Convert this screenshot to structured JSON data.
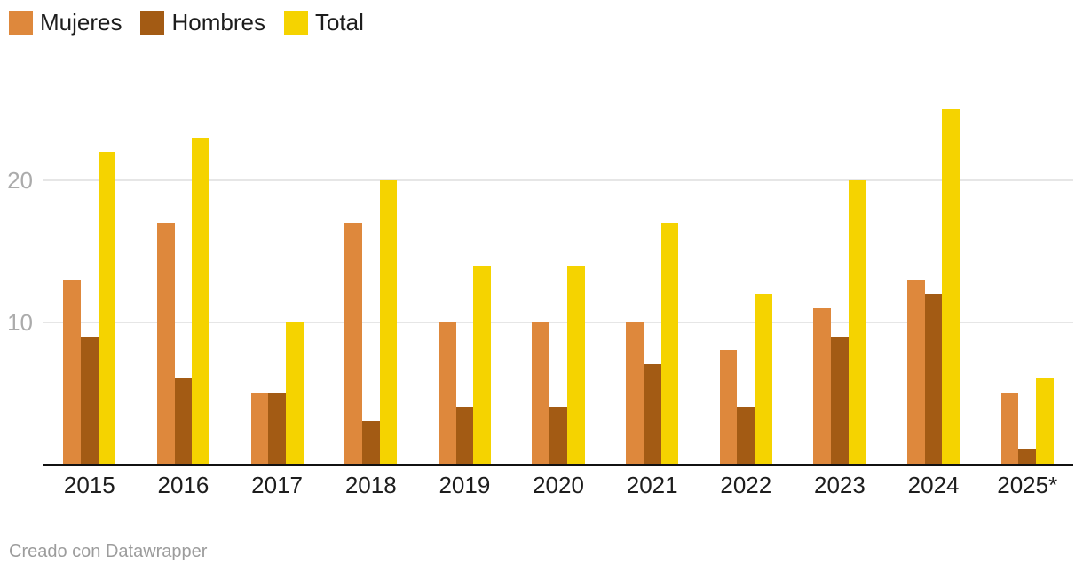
{
  "legend": {
    "items": [
      {
        "label": "Mujeres",
        "color": "#DE883C"
      },
      {
        "label": "Hombres",
        "color": "#A35B14"
      },
      {
        "label": "Total",
        "color": "#F5D300"
      }
    ]
  },
  "footer": {
    "text": "Creado con Datawrapper"
  },
  "colors": {
    "axis": "#111111",
    "gridline": "#E6E6E6",
    "tick_label": "#ABABAB",
    "x_label": "#1D1D1D"
  },
  "chart_data": {
    "type": "bar",
    "title": "",
    "xlabel": "",
    "ylabel": "",
    "categories": [
      "2015",
      "2016",
      "2017",
      "2018",
      "2019",
      "2020",
      "2021",
      "2022",
      "2023",
      "2024",
      "2025*"
    ],
    "series": [
      {
        "name": "Mujeres",
        "color": "#DE883C",
        "values": [
          13,
          17,
          5,
          17,
          10,
          10,
          10,
          8,
          11,
          13,
          5
        ]
      },
      {
        "name": "Hombres",
        "color": "#A35B14",
        "values": [
          9,
          6,
          5,
          3,
          4,
          4,
          7,
          4,
          9,
          12,
          1
        ]
      },
      {
        "name": "Total",
        "color": "#F5D300",
        "values": [
          22,
          23,
          10,
          20,
          14,
          14,
          17,
          12,
          20,
          25,
          6
        ]
      }
    ],
    "yticks": [
      10,
      20
    ],
    "ylim": [
      0,
      27.7
    ],
    "grid": "horizontal",
    "legend_position": "top-left",
    "attribution": "Creado con Datawrapper"
  }
}
